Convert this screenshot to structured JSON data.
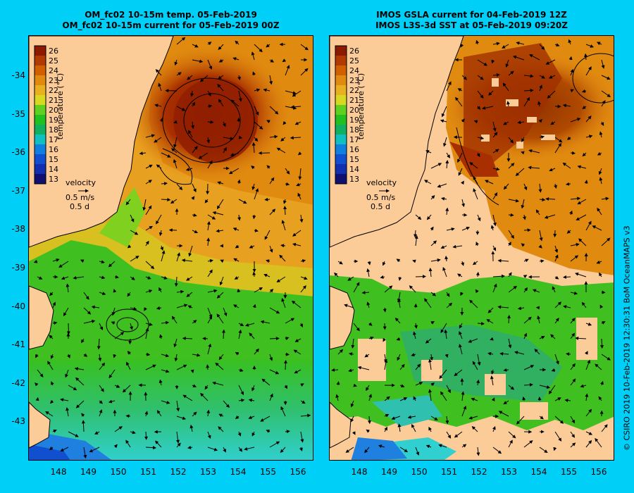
{
  "left_panel": {
    "title_line1": "OM_fc02 10-15m temp. 05-Feb-2019",
    "title_line2": "OM_fc02 10-15m current for 05-Feb-2019 00Z"
  },
  "right_panel": {
    "title_line1": "IMOS GSLA current for 04-Feb-2019 12Z",
    "title_line2": "IMOS L3S-3d SST at 05-Feb-2019 09:20Z"
  },
  "colorbar": {
    "label": "temperature (°C)",
    "ticks": [
      "26",
      "25",
      "24",
      "23",
      "22",
      "21",
      "20",
      "19",
      "18",
      "17",
      "16",
      "15",
      "14",
      "13"
    ],
    "colors": [
      "#8b1a00",
      "#b03a00",
      "#d06000",
      "#e08a10",
      "#e8b020",
      "#d8d820",
      "#60d020",
      "#20c020",
      "#10b060",
      "#10c0c0",
      "#1080e0",
      "#1050d0",
      "#1030b0",
      "#101070"
    ]
  },
  "velocity_legend": {
    "label": "velocity",
    "speed": "0.5 m/s",
    "duration": "0.5 d"
  },
  "axes": {
    "lat_labels": [
      "-34",
      "-35",
      "-36",
      "-37",
      "-38",
      "-39",
      "-40",
      "-41",
      "-42",
      "-43"
    ],
    "lon_labels": [
      "148",
      "149",
      "150",
      "151",
      "152",
      "153",
      "154",
      "155",
      "156"
    ]
  },
  "credit": "© CSIRO 2019   10-Feb-2019 12:30:31 BoM OceanMAPS v3",
  "colors": {
    "background": "#00d0f8",
    "land": "#fbcb98",
    "warm": "#e89a20",
    "hot": "#8b1a00",
    "green": "#40c020",
    "cyan": "#30d0c0"
  }
}
